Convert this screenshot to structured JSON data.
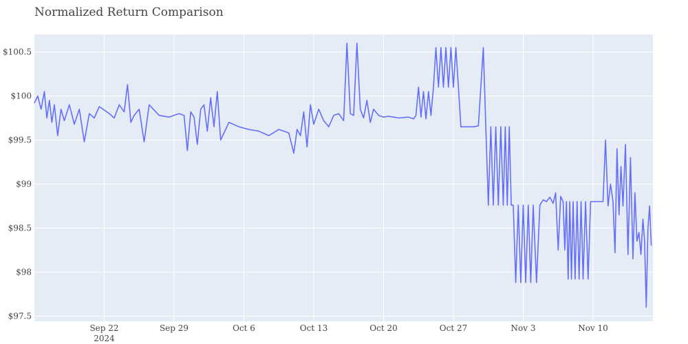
{
  "chart_data": {
    "type": "line",
    "title": "Normalized Return Comparison",
    "xlabel": "",
    "ylabel": "",
    "x_start": "2024-09-15",
    "x_end": "2024-11-15",
    "xlim": [
      "2024-09-15",
      "2024-11-15"
    ],
    "ylim": [
      97.44,
      100.7
    ],
    "grid": true,
    "legend": "none",
    "x_ticks": [
      {
        "date": "2024-09-22",
        "label": "Sep 22",
        "sublabel": "2024"
      },
      {
        "date": "2024-09-29",
        "label": "Sep 29",
        "sublabel": ""
      },
      {
        "date": "2024-10-06",
        "label": "Oct 6",
        "sublabel": ""
      },
      {
        "date": "2024-10-13",
        "label": "Oct 13",
        "sublabel": ""
      },
      {
        "date": "2024-10-20",
        "label": "Oct 20",
        "sublabel": ""
      },
      {
        "date": "2024-10-27",
        "label": "Oct 27",
        "sublabel": ""
      },
      {
        "date": "2024-11-03",
        "label": "Nov 3",
        "sublabel": ""
      },
      {
        "date": "2024-11-10",
        "label": "Nov 10",
        "sublabel": ""
      }
    ],
    "y_ticks": [
      {
        "value": 97.5,
        "label": "$97.5"
      },
      {
        "value": 98,
        "label": "$98"
      },
      {
        "value": 98.5,
        "label": "$98.5"
      },
      {
        "value": 99,
        "label": "$99"
      },
      {
        "value": 99.5,
        "label": "$99.5"
      },
      {
        "value": 100,
        "label": "$100"
      },
      {
        "value": 100.5,
        "label": "$100.5"
      }
    ],
    "series": [
      {
        "color": "#636efa",
        "points": [
          [
            "2024-09-15",
            99.92
          ],
          [
            "2024-09-15",
            100.0
          ],
          [
            "2024-09-15",
            99.85
          ],
          [
            "2024-09-16",
            100.05
          ],
          [
            "2024-09-16",
            99.75
          ],
          [
            "2024-09-16",
            99.95
          ],
          [
            "2024-09-16",
            99.7
          ],
          [
            "2024-09-17",
            99.9
          ],
          [
            "2024-09-17",
            99.55
          ],
          [
            "2024-09-17",
            99.85
          ],
          [
            "2024-09-18",
            99.72
          ],
          [
            "2024-09-18",
            99.9
          ],
          [
            "2024-09-19",
            99.68
          ],
          [
            "2024-09-19",
            99.85
          ],
          [
            "2024-09-20",
            99.48
          ],
          [
            "2024-09-20",
            99.8
          ],
          [
            "2024-09-21",
            99.75
          ],
          [
            "2024-09-21",
            99.88
          ],
          [
            "2024-09-22",
            99.8
          ],
          [
            "2024-09-23",
            99.75
          ],
          [
            "2024-09-23",
            99.9
          ],
          [
            "2024-09-24",
            99.82
          ],
          [
            "2024-09-24",
            100.13
          ],
          [
            "2024-09-24",
            99.7
          ],
          [
            "2024-09-25",
            99.78
          ],
          [
            "2024-09-25",
            99.85
          ],
          [
            "2024-09-26",
            99.48
          ],
          [
            "2024-09-26",
            99.9
          ],
          [
            "2024-09-27",
            99.78
          ],
          [
            "2024-09-28",
            99.76
          ],
          [
            "2024-09-29",
            99.8
          ],
          [
            "2024-09-30",
            99.78
          ],
          [
            "2024-09-30",
            99.38
          ],
          [
            "2024-09-30",
            99.82
          ],
          [
            "2024-10-01",
            99.76
          ],
          [
            "2024-10-01",
            99.45
          ],
          [
            "2024-10-01",
            99.85
          ],
          [
            "2024-10-02",
            99.9
          ],
          [
            "2024-10-02",
            99.6
          ],
          [
            "2024-10-02",
            99.98
          ],
          [
            "2024-10-03",
            99.65
          ],
          [
            "2024-10-03",
            100.05
          ],
          [
            "2024-10-03",
            99.5
          ],
          [
            "2024-10-04",
            99.7
          ],
          [
            "2024-10-05",
            99.65
          ],
          [
            "2024-10-06",
            99.62
          ],
          [
            "2024-10-07",
            99.6
          ],
          [
            "2024-10-08",
            99.55
          ],
          [
            "2024-10-09",
            99.62
          ],
          [
            "2024-10-10",
            99.58
          ],
          [
            "2024-10-11",
            99.35
          ],
          [
            "2024-10-11",
            99.62
          ],
          [
            "2024-10-11",
            99.55
          ],
          [
            "2024-10-12",
            99.82
          ],
          [
            "2024-10-12",
            99.42
          ],
          [
            "2024-10-12",
            99.9
          ],
          [
            "2024-10-13",
            99.68
          ],
          [
            "2024-10-13",
            99.85
          ],
          [
            "2024-10-14",
            99.72
          ],
          [
            "2024-10-14",
            99.65
          ],
          [
            "2024-10-15",
            99.78
          ],
          [
            "2024-10-15",
            99.8
          ],
          [
            "2024-10-16",
            99.72
          ],
          [
            "2024-10-16",
            100.6
          ],
          [
            "2024-10-16",
            99.8
          ],
          [
            "2024-10-17",
            99.78
          ],
          [
            "2024-10-17",
            100.6
          ],
          [
            "2024-10-17",
            99.85
          ],
          [
            "2024-10-18",
            99.75
          ],
          [
            "2024-10-18",
            99.95
          ],
          [
            "2024-10-18",
            99.7
          ],
          [
            "2024-10-19",
            99.85
          ],
          [
            "2024-10-19",
            99.78
          ],
          [
            "2024-10-20",
            99.76
          ],
          [
            "2024-10-20",
            99.77
          ],
          [
            "2024-10-21",
            99.76
          ],
          [
            "2024-10-21",
            99.75
          ],
          [
            "2024-10-22",
            99.76
          ],
          [
            "2024-10-23",
            99.74
          ],
          [
            "2024-10-23",
            99.78
          ],
          [
            "2024-10-23",
            100.1
          ],
          [
            "2024-10-23",
            99.76
          ],
          [
            "2024-10-24",
            100.05
          ],
          [
            "2024-10-24",
            99.74
          ],
          [
            "2024-10-24",
            100.05
          ],
          [
            "2024-10-24",
            99.78
          ],
          [
            "2024-10-25",
            100.1
          ],
          [
            "2024-10-25",
            100.55
          ],
          [
            "2024-10-25",
            100.1
          ],
          [
            "2024-10-25",
            100.55
          ],
          [
            "2024-10-26",
            100.1
          ],
          [
            "2024-10-26",
            100.55
          ],
          [
            "2024-10-26",
            100.1
          ],
          [
            "2024-10-26",
            100.55
          ],
          [
            "2024-10-27",
            100.1
          ],
          [
            "2024-10-27",
            100.55
          ],
          [
            "2024-10-27",
            100.1
          ],
          [
            "2024-10-27",
            99.65
          ],
          [
            "2024-10-29",
            99.65
          ],
          [
            "2024-10-29",
            99.66
          ],
          [
            "2024-10-30",
            100.55
          ],
          [
            "2024-10-30",
            99.65
          ],
          [
            "2024-10-30",
            98.76
          ],
          [
            "2024-10-30",
            99.65
          ],
          [
            "2024-10-31",
            98.76
          ],
          [
            "2024-10-31",
            99.65
          ],
          [
            "2024-10-31",
            98.76
          ],
          [
            "2024-10-31",
            99.65
          ],
          [
            "2024-11-01",
            98.76
          ],
          [
            "2024-11-01",
            99.65
          ],
          [
            "2024-11-01",
            98.76
          ],
          [
            "2024-11-01",
            99.65
          ],
          [
            "2024-11-01",
            98.76
          ],
          [
            "2024-11-02",
            98.76
          ],
          [
            "2024-11-02",
            97.88
          ],
          [
            "2024-11-02",
            98.76
          ],
          [
            "2024-11-02",
            97.88
          ],
          [
            "2024-11-03",
            98.76
          ],
          [
            "2024-11-03",
            97.88
          ],
          [
            "2024-11-03",
            98.76
          ],
          [
            "2024-11-03",
            97.88
          ],
          [
            "2024-11-04",
            98.76
          ],
          [
            "2024-11-04",
            97.88
          ],
          [
            "2024-11-04",
            98.76
          ],
          [
            "2024-11-05",
            98.82
          ],
          [
            "2024-11-05",
            98.8
          ],
          [
            "2024-11-05",
            98.85
          ],
          [
            "2024-11-06",
            98.78
          ],
          [
            "2024-11-06",
            98.9
          ],
          [
            "2024-11-06",
            98.25
          ],
          [
            "2024-11-06",
            98.86
          ],
          [
            "2024-11-07",
            98.8
          ],
          [
            "2024-11-07",
            98.25
          ],
          [
            "2024-11-07",
            98.8
          ],
          [
            "2024-11-07",
            97.92
          ],
          [
            "2024-11-07",
            98.8
          ],
          [
            "2024-11-07",
            97.92
          ],
          [
            "2024-11-08",
            98.8
          ],
          [
            "2024-11-08",
            97.92
          ],
          [
            "2024-11-08",
            98.8
          ],
          [
            "2024-11-08",
            97.92
          ],
          [
            "2024-11-08",
            98.8
          ],
          [
            "2024-11-09",
            97.92
          ],
          [
            "2024-11-09",
            98.8
          ],
          [
            "2024-11-09",
            97.92
          ],
          [
            "2024-11-09",
            98.8
          ],
          [
            "2024-11-10",
            98.8
          ],
          [
            "2024-11-10",
            98.8
          ],
          [
            "2024-11-11",
            98.8
          ],
          [
            "2024-11-11",
            99.5
          ],
          [
            "2024-11-11",
            98.75
          ],
          [
            "2024-11-11",
            99.0
          ],
          [
            "2024-11-12",
            98.8
          ],
          [
            "2024-11-12",
            98.22
          ],
          [
            "2024-11-12",
            99.4
          ],
          [
            "2024-11-12",
            98.65
          ],
          [
            "2024-11-12",
            99.2
          ],
          [
            "2024-11-13",
            98.75
          ],
          [
            "2024-11-13",
            99.45
          ],
          [
            "2024-11-13",
            98.2
          ],
          [
            "2024-11-13",
            99.3
          ],
          [
            "2024-11-14",
            98.15
          ],
          [
            "2024-11-14",
            98.9
          ],
          [
            "2024-11-14",
            98.35
          ],
          [
            "2024-11-14",
            98.45
          ],
          [
            "2024-11-14",
            98.2
          ],
          [
            "2024-11-15",
            98.6
          ],
          [
            "2024-11-15",
            98.35
          ],
          [
            "2024-11-15",
            97.6
          ],
          [
            "2024-11-15",
            98.5
          ],
          [
            "2024-11-15",
            98.75
          ],
          [
            "2024-11-15",
            98.3
          ]
        ]
      }
    ],
    "colors": {
      "plot_bg": "#e5ecf6",
      "grid": "#ffffff",
      "line": "#636efa",
      "text": "#444444"
    }
  }
}
